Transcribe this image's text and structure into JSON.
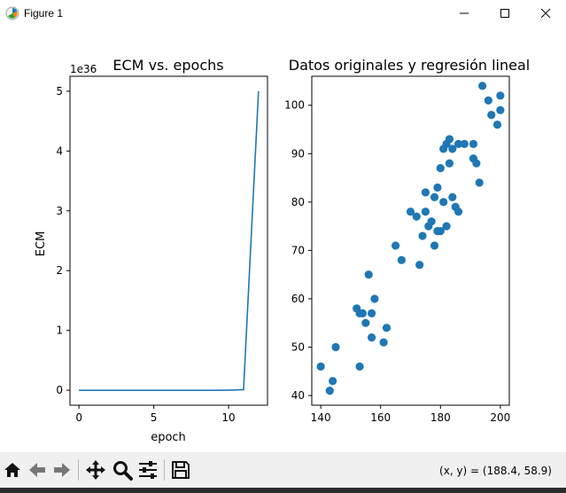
{
  "window": {
    "title": "Figure 1"
  },
  "toolbar": {
    "buttons": [
      "home-icon",
      "back-icon",
      "forward-icon",
      "pan-icon",
      "zoom-icon",
      "subplots-icon",
      "save-icon"
    ],
    "coords_readout": "(x, y) = (188.4, 58.9)"
  },
  "colors": {
    "series": "#1f77b4",
    "toolbar_bg": "#f0f0f0"
  },
  "chart_data": [
    {
      "type": "line",
      "title": "ECM vs. epochs",
      "xlabel": "epoch",
      "ylabel": "ECM",
      "offset_label": "1e36",
      "x": [
        0,
        1,
        2,
        3,
        4,
        5,
        6,
        7,
        8,
        9,
        10,
        11,
        12
      ],
      "y": [
        0,
        0,
        0,
        0,
        0,
        0,
        0,
        0,
        0,
        0,
        0.001,
        0.01,
        5.0
      ],
      "xlim": [
        -0.6,
        12.6
      ],
      "ylim": [
        -0.25,
        5.25
      ],
      "xticks": [
        0,
        5,
        10
      ],
      "yticks": [
        0,
        1,
        2,
        3,
        4,
        5
      ],
      "grid": false
    },
    {
      "type": "scatter",
      "title": "Datos originales y regresión lineal",
      "x": [
        140,
        143,
        144,
        145,
        152,
        153,
        153,
        154,
        155,
        156,
        157,
        157,
        158,
        161,
        162,
        165,
        167,
        170,
        172,
        173,
        174,
        175,
        175,
        176,
        177,
        178,
        178,
        179,
        179,
        180,
        180,
        181,
        181,
        182,
        182,
        183,
        183,
        184,
        184,
        185,
        186,
        186,
        188,
        191,
        191,
        192,
        193,
        194,
        196,
        197,
        199,
        200,
        200
      ],
      "y": [
        46,
        41,
        43,
        50,
        58,
        57,
        46,
        57,
        55,
        65,
        57,
        52,
        60,
        51,
        54,
        71,
        68,
        78,
        77,
        67,
        73,
        78,
        82,
        75,
        76,
        71,
        81,
        74,
        83,
        74,
        87,
        91,
        80,
        92,
        75,
        88,
        93,
        91,
        81,
        79,
        78,
        92,
        92,
        92,
        89,
        88,
        84,
        104,
        101,
        98,
        96,
        102,
        99
      ],
      "xlim": [
        137,
        203
      ],
      "ylim": [
        38,
        106
      ],
      "xticks": [
        140,
        160,
        180,
        200
      ],
      "yticks": [
        40,
        50,
        60,
        70,
        80,
        90,
        100
      ],
      "grid": false
    }
  ]
}
